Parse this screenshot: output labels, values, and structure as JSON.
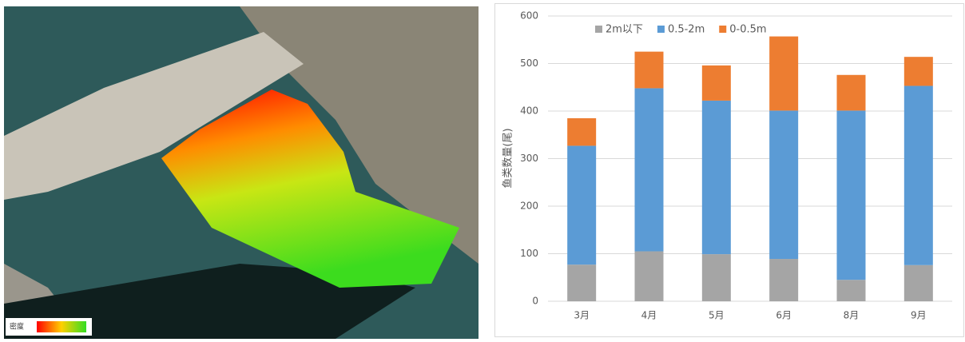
{
  "map": {
    "legend_label": "密度"
  },
  "chart_data": {
    "type": "stacked_bar",
    "y_label": "鱼类数量(尾)",
    "categories": [
      "3月",
      "4月",
      "5月",
      "6月",
      "8月",
      "9月"
    ],
    "series": [
      {
        "name": "2m以下",
        "color": "#a5a5a5",
        "values": [
          77,
          105,
          99,
          89,
          45,
          76
        ]
      },
      {
        "name": "0.5-2m",
        "color": "#5b9bd5",
        "values": [
          250,
          343,
          323,
          312,
          356,
          377
        ]
      },
      {
        "name": "0-0.5m",
        "color": "#ed7d31",
        "values": [
          58,
          77,
          74,
          156,
          75,
          61
        ]
      }
    ],
    "ylim": [
      0,
      600
    ],
    "yticks": [
      0,
      100,
      200,
      300,
      400,
      500,
      600
    ],
    "grid": true,
    "legend": "top"
  }
}
